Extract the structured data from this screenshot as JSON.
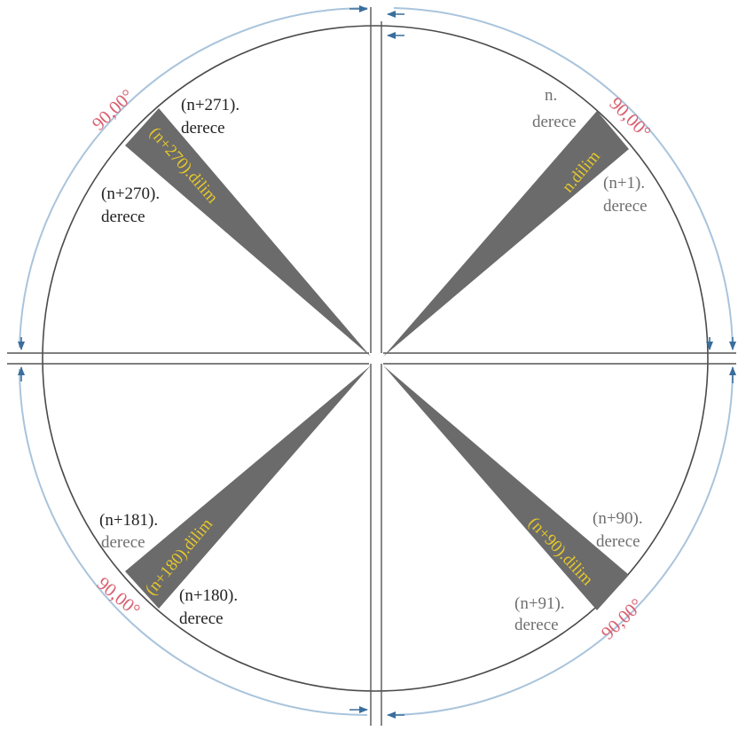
{
  "colors": {
    "circle": "#4a4a4a",
    "slice": "#6b6b6b",
    "arc": "#7fa7c9",
    "arrow": "#3a6e9c",
    "angle_label": "#d96070",
    "slice_label": "#e6c82a"
  },
  "quadrants": {
    "top_right": {
      "angle": "90,00°",
      "slice": "n.dilim",
      "deg_a": [
        "n.",
        "derece"
      ],
      "deg_b": [
        "(n+1).",
        "derece"
      ]
    },
    "bottom_right": {
      "angle": "90,00°",
      "slice": "(n+90).dilim",
      "deg_a": [
        "(n+90).",
        "derece"
      ],
      "deg_b": [
        "(n+91).",
        "derece"
      ]
    },
    "bottom_left": {
      "angle": "90,00°",
      "slice": "(n+180).dilim",
      "deg_a": [
        "(n+181).",
        "derece"
      ],
      "deg_b": [
        "(n+180).",
        "derece"
      ]
    },
    "top_left": {
      "angle": "90,00°",
      "slice": "(n+270).dilim",
      "deg_a": [
        "(n+271).",
        "derece"
      ],
      "deg_b": [
        "(n+270).",
        "derece"
      ]
    }
  }
}
